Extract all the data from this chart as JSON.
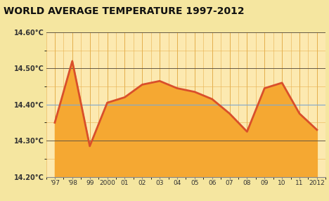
{
  "title": "WORLD AVERAGE TEMPERATURE 1997-2012",
  "years": [
    1997,
    1998,
    1999,
    2000,
    2001,
    2002,
    2003,
    2004,
    2005,
    2006,
    2007,
    2008,
    2009,
    2010,
    2011,
    2012
  ],
  "temps": [
    14.35,
    14.52,
    14.285,
    14.405,
    14.42,
    14.455,
    14.465,
    14.445,
    14.435,
    14.415,
    14.375,
    14.325,
    14.445,
    14.46,
    14.375,
    14.33
  ],
  "xlabels": [
    "'97",
    "'98",
    "99",
    "2000",
    "01",
    "02",
    "03",
    "04",
    "05",
    "06",
    "07",
    "08",
    "09",
    "10",
    "11",
    "2012"
  ],
  "ylim": [
    14.2,
    14.6
  ],
  "yticks": [
    14.2,
    14.3,
    14.4,
    14.5,
    14.6
  ],
  "ytick_labels": [
    "14.20°C",
    "14.30°C",
    "14.40°C",
    "14.50°C",
    "14.60°C"
  ],
  "line_color": "#d94f2b",
  "fill_color": "#f5a832",
  "fill_alpha": 1.0,
  "grid_major_color": "#d4880a",
  "grid_minor_color": "#e8b050",
  "bg_color": "#f5e6a0",
  "plot_bg_color": "#fce9b0",
  "title_color": "#111111",
  "mean_line_y": 14.4,
  "mean_line_color": "#8ab4d8",
  "mean_line_alpha": 0.9,
  "hline_color": "#444444",
  "hline_lw": 0.7
}
